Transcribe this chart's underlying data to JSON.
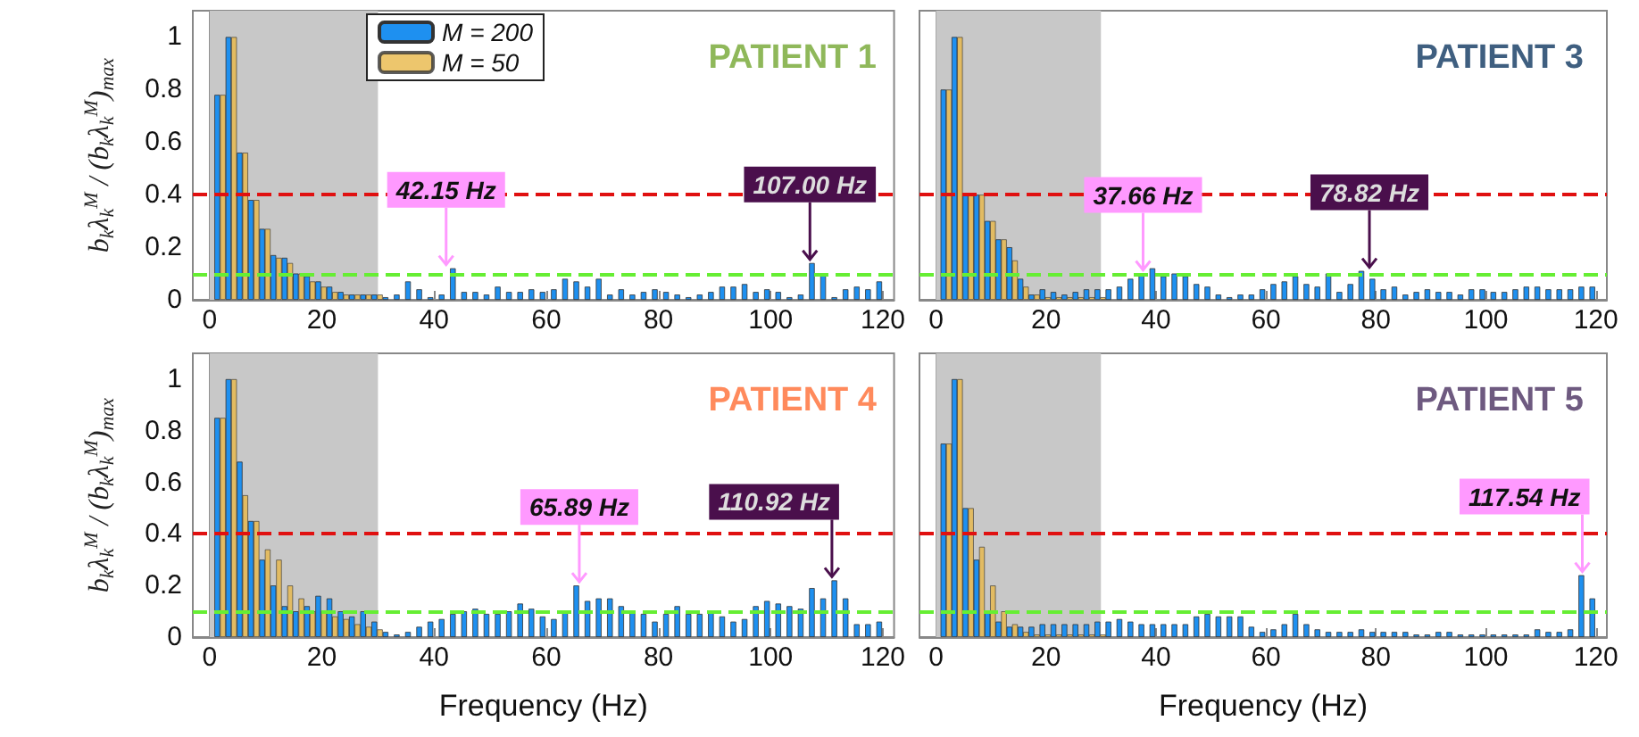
{
  "chart_data": [
    {
      "type": "bar",
      "title": "PATIENT 1",
      "ylabel": "b$_{k}$λ$_{k}$$^{M}$ / (b$_{k}$λ$_{k}$$^{M}$)$_{max}$",
      "xlim": [
        -3,
        122
      ],
      "xticks": [
        0,
        20,
        40,
        60,
        80,
        100,
        120
      ],
      "ylim": [
        0,
        1.1
      ],
      "yticks": [
        0,
        0.2,
        0.4,
        0.6,
        0.8,
        1
      ],
      "grid": false,
      "legend": "top",
      "series": [
        {
          "name": "M = 200",
          "color": "#1e90f0",
          "x": [
            1,
            3,
            5,
            7,
            9,
            11,
            13,
            15,
            17,
            19,
            21,
            23,
            25,
            27,
            29,
            31,
            33,
            35,
            37,
            39,
            41,
            43,
            45,
            47,
            49,
            51,
            53,
            55,
            57,
            59,
            61,
            63,
            65,
            67,
            69,
            71,
            73,
            75,
            77,
            79,
            81,
            83,
            85,
            87,
            89,
            91,
            93,
            95,
            97,
            99,
            101,
            103,
            105,
            107,
            109,
            111,
            113,
            115,
            117,
            119
          ],
          "values": [
            0.78,
            1.0,
            0.56,
            0.38,
            0.27,
            0.17,
            0.16,
            0.1,
            0.09,
            0.07,
            0.05,
            0.03,
            0.02,
            0.02,
            0.02,
            0.01,
            0.02,
            0.07,
            0.04,
            0.01,
            0.02,
            0.12,
            0.03,
            0.03,
            0.02,
            0.05,
            0.03,
            0.03,
            0.04,
            0.03,
            0.04,
            0.08,
            0.07,
            0.05,
            0.08,
            0.02,
            0.04,
            0.02,
            0.03,
            0.04,
            0.03,
            0.02,
            0.01,
            0.02,
            0.03,
            0.05,
            0.05,
            0.06,
            0.03,
            0.04,
            0.03,
            0.01,
            0.02,
            0.14,
            0.1,
            0.01,
            0.04,
            0.05,
            0.04,
            0.07
          ]
        },
        {
          "name": "M = 50",
          "color": "#e8b848",
          "x": [
            2,
            4,
            6,
            8,
            10,
            12,
            14,
            16,
            18,
            20,
            22,
            24,
            26,
            28,
            30
          ],
          "values": [
            0.78,
            1.0,
            0.56,
            0.38,
            0.27,
            0.16,
            0.14,
            0.1,
            0.07,
            0.05,
            0.03,
            0.02,
            0.02,
            0.02,
            0.02
          ]
        }
      ],
      "bands": [
        {
          "axis": "x",
          "from": 0,
          "to": 30,
          "color": "#c8c8c8"
        }
      ],
      "ref_lines": [
        {
          "axis": "y",
          "value": 0.4,
          "color": "#e01010",
          "line_style": "dashed"
        },
        {
          "axis": "y",
          "value": 0.1,
          "color": "#66ee33",
          "line_style": "dashed"
        }
      ],
      "annotations": [
        {
          "text": "42.15 Hz",
          "x": 42.15,
          "y": 0.12
        },
        {
          "text": "107.00 Hz",
          "x": 107.0,
          "y": 0.14
        }
      ]
    },
    {
      "type": "bar",
      "title": "PATIENT 3",
      "xlim": [
        -3,
        122
      ],
      "xticks": [
        0,
        20,
        40,
        60,
        80,
        100,
        120
      ],
      "ylim": [
        0,
        1.1
      ],
      "yticks": [
        0,
        0.2,
        0.4,
        0.6,
        0.8,
        1
      ],
      "grid": false,
      "tick_labels": "x",
      "series": [
        {
          "color": "#1e90f0",
          "x": [
            1,
            3,
            5,
            7,
            9,
            11,
            13,
            15,
            17,
            19,
            21,
            23,
            25,
            27,
            29,
            31,
            33,
            35,
            37,
            39,
            41,
            43,
            45,
            47,
            49,
            51,
            53,
            55,
            57,
            59,
            61,
            63,
            65,
            67,
            69,
            71,
            73,
            75,
            77,
            79,
            81,
            83,
            85,
            87,
            89,
            91,
            93,
            95,
            97,
            99,
            101,
            103,
            105,
            107,
            109,
            111,
            113,
            115,
            117,
            119
          ],
          "values": [
            0.8,
            1.0,
            0.4,
            0.4,
            0.3,
            0.23,
            0.2,
            0.08,
            0.02,
            0.04,
            0.03,
            0.02,
            0.03,
            0.04,
            0.04,
            0.04,
            0.05,
            0.08,
            0.1,
            0.12,
            0.09,
            0.1,
            0.09,
            0.06,
            0.05,
            0.02,
            0.01,
            0.02,
            0.02,
            0.04,
            0.06,
            0.07,
            0.09,
            0.06,
            0.05,
            0.1,
            0.03,
            0.06,
            0.11,
            0.08,
            0.04,
            0.05,
            0.02,
            0.03,
            0.04,
            0.03,
            0.03,
            0.02,
            0.04,
            0.04,
            0.03,
            0.03,
            0.04,
            0.05,
            0.05,
            0.04,
            0.04,
            0.04,
            0.05,
            0.05
          ]
        },
        {
          "color": "#e8b848",
          "x": [
            2,
            4,
            6,
            8,
            10,
            12,
            14,
            16,
            18,
            20,
            22,
            24,
            26,
            28,
            30
          ],
          "values": [
            0.8,
            1.0,
            0.4,
            0.4,
            0.3,
            0.23,
            0.15,
            0.05,
            0.02,
            0.01,
            0.01,
            0.01,
            0.01,
            0.01,
            0.01
          ]
        }
      ],
      "bands": [
        {
          "axis": "x",
          "from": 0,
          "to": 30,
          "color": "#c8c8c8"
        }
      ],
      "ref_lines": [
        {
          "axis": "y",
          "value": 0.4,
          "color": "#e01010",
          "line_style": "dashed"
        },
        {
          "axis": "y",
          "value": 0.1,
          "color": "#66ee33",
          "line_style": "dashed"
        }
      ],
      "annotations": [
        {
          "text": "37.66 Hz",
          "x": 37.66,
          "y": 0.1
        },
        {
          "text": "78.82 Hz",
          "x": 78.82,
          "y": 0.11
        }
      ]
    },
    {
      "type": "bar",
      "title": "PATIENT 4",
      "xlabel": "Frequency (Hz)",
      "ylabel": "b$_{k}$λ$_{k}$$^{M}$ / (b$_{k}$λ$_{k}$$^{M}$)$_{max}$",
      "xlim": [
        -3,
        122
      ],
      "xticks": [
        0,
        20,
        40,
        60,
        80,
        100,
        120
      ],
      "ylim": [
        0,
        1.1
      ],
      "yticks": [
        0,
        0.2,
        0.4,
        0.6,
        0.8,
        1
      ],
      "grid": false,
      "series": [
        {
          "color": "#1e90f0",
          "x": [
            1,
            3,
            5,
            7,
            9,
            11,
            13,
            15,
            17,
            19,
            21,
            23,
            25,
            27,
            29,
            31,
            33,
            35,
            37,
            39,
            41,
            43,
            45,
            47,
            49,
            51,
            53,
            55,
            57,
            59,
            61,
            63,
            65,
            67,
            69,
            71,
            73,
            75,
            77,
            79,
            81,
            83,
            85,
            87,
            89,
            91,
            93,
            95,
            97,
            99,
            101,
            103,
            105,
            107,
            109,
            111,
            113,
            115,
            117,
            119
          ],
          "values": [
            0.85,
            1.0,
            0.68,
            0.45,
            0.3,
            0.2,
            0.12,
            0.1,
            0.12,
            0.16,
            0.15,
            0.1,
            0.08,
            0.1,
            0.06,
            0.02,
            0.01,
            0.02,
            0.04,
            0.06,
            0.07,
            0.09,
            0.1,
            0.11,
            0.09,
            0.09,
            0.1,
            0.13,
            0.11,
            0.08,
            0.07,
            0.1,
            0.2,
            0.14,
            0.15,
            0.15,
            0.12,
            0.1,
            0.09,
            0.06,
            0.09,
            0.12,
            0.09,
            0.09,
            0.1,
            0.08,
            0.06,
            0.07,
            0.12,
            0.14,
            0.13,
            0.12,
            0.11,
            0.19,
            0.15,
            0.22,
            0.15,
            0.05,
            0.05,
            0.06
          ]
        },
        {
          "color": "#e8b848",
          "x": [
            2,
            4,
            6,
            8,
            10,
            12,
            14,
            16,
            18,
            20,
            22,
            24,
            26,
            28,
            30
          ],
          "values": [
            0.85,
            1.0,
            0.55,
            0.45,
            0.34,
            0.3,
            0.2,
            0.15,
            0.1,
            0.1,
            0.08,
            0.07,
            0.05,
            0.04,
            0.03
          ]
        }
      ],
      "bands": [
        {
          "axis": "x",
          "from": 0,
          "to": 30,
          "color": "#c8c8c8"
        }
      ],
      "ref_lines": [
        {
          "axis": "y",
          "value": 0.4,
          "color": "#e01010",
          "line_style": "dashed"
        },
        {
          "axis": "y",
          "value": 0.1,
          "color": "#66ee33",
          "line_style": "dashed"
        }
      ],
      "annotations": [
        {
          "text": "65.89 Hz",
          "x": 65.89,
          "y": 0.2
        },
        {
          "text": "110.92 Hz",
          "x": 110.92,
          "y": 0.22
        }
      ]
    },
    {
      "type": "bar",
      "title": "PATIENT 5",
      "xlabel": "Frequency (Hz)",
      "xlim": [
        -3,
        122
      ],
      "xticks": [
        0,
        20,
        40,
        60,
        80,
        100,
        120
      ],
      "ylim": [
        0,
        1.1
      ],
      "yticks": [
        0,
        0.2,
        0.4,
        0.6,
        0.8,
        1
      ],
      "grid": false,
      "tick_labels": "x",
      "series": [
        {
          "color": "#1e90f0",
          "x": [
            1,
            3,
            5,
            7,
            9,
            11,
            13,
            15,
            17,
            19,
            21,
            23,
            25,
            27,
            29,
            31,
            33,
            35,
            37,
            39,
            41,
            43,
            45,
            47,
            49,
            51,
            53,
            55,
            57,
            59,
            61,
            63,
            65,
            67,
            69,
            71,
            73,
            75,
            77,
            79,
            81,
            83,
            85,
            87,
            89,
            91,
            93,
            95,
            97,
            99,
            101,
            103,
            105,
            107,
            109,
            111,
            113,
            115,
            117,
            119
          ],
          "values": [
            0.75,
            1.0,
            0.5,
            0.3,
            0.1,
            0.06,
            0.04,
            0.04,
            0.04,
            0.05,
            0.05,
            0.05,
            0.05,
            0.05,
            0.06,
            0.06,
            0.07,
            0.06,
            0.05,
            0.05,
            0.05,
            0.05,
            0.05,
            0.08,
            0.09,
            0.08,
            0.08,
            0.08,
            0.04,
            0.02,
            0.03,
            0.05,
            0.09,
            0.05,
            0.03,
            0.02,
            0.02,
            0.02,
            0.03,
            0.02,
            0.02,
            0.02,
            0.02,
            0.01,
            0.01,
            0.02,
            0.02,
            0.01,
            0.01,
            0.01,
            0.01,
            0.01,
            0.01,
            0.01,
            0.03,
            0.02,
            0.02,
            0.03,
            0.24,
            0.15
          ]
        },
        {
          "color": "#e8b848",
          "x": [
            2,
            4,
            6,
            8,
            10,
            12,
            14,
            16,
            18,
            20,
            22,
            24,
            26,
            28,
            30
          ],
          "values": [
            0.75,
            1.0,
            0.5,
            0.35,
            0.2,
            0.1,
            0.05,
            0.02,
            0.01,
            0.01,
            0.01,
            0.01,
            0.01,
            0.01,
            0.01
          ]
        }
      ],
      "bands": [
        {
          "axis": "x",
          "from": 0,
          "to": 30,
          "color": "#c8c8c8"
        }
      ],
      "ref_lines": [
        {
          "axis": "y",
          "value": 0.4,
          "color": "#e01010",
          "line_style": "dashed"
        },
        {
          "axis": "y",
          "value": 0.1,
          "color": "#66ee33",
          "line_style": "dashed"
        }
      ],
      "annotations": [
        {
          "text": "117.54 Hz",
          "x": 117.54,
          "y": 0.24
        }
      ]
    }
  ]
}
